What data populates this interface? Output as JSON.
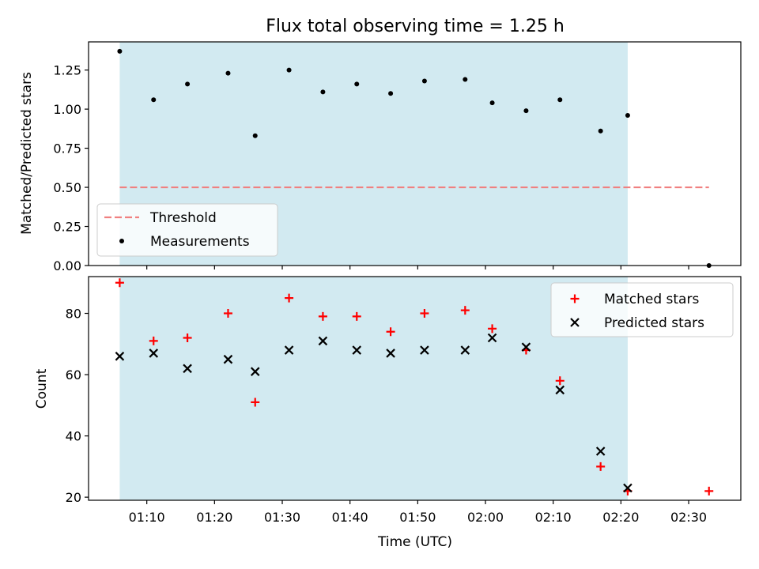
{
  "chart_data": {
    "title": "Flux total observing time = 1.25 h",
    "xlabel": "Time (UTC)",
    "x_tick_labels": [
      "01:10",
      "01:20",
      "01:30",
      "01:40",
      "01:50",
      "02:00",
      "02:10",
      "02:20",
      "02:30"
    ],
    "x_tick_minutes": [
      70,
      80,
      90,
      100,
      110,
      120,
      130,
      140,
      150
    ],
    "xlim_minutes": [
      61.4,
      157.7
    ],
    "shaded_span_minutes": [
      66,
      141
    ],
    "shade_color": "#add8e6",
    "panels": [
      {
        "type": "scatter",
        "ylabel": "Matched/Predicted stars",
        "ylim": [
          0,
          1.43
        ],
        "yticks": [
          0.0,
          0.25,
          0.5,
          0.75,
          1.0,
          1.25
        ],
        "ytick_labels": [
          "0.00",
          "0.25",
          "0.50",
          "0.75",
          "1.00",
          "1.25"
        ],
        "threshold": {
          "name": "Threshold",
          "value": 0.5,
          "x_range_minutes": [
            66,
            153
          ],
          "color": "#f08080"
        },
        "series": [
          {
            "name": "Measurements",
            "color": "#000000",
            "marker": "dot",
            "x_minutes": [
              66,
              71,
              76,
              82,
              86,
              91,
              96,
              101,
              106,
              111,
              117,
              121,
              126,
              131,
              137,
              141,
              153
            ],
            "values": [
              1.37,
              1.06,
              1.16,
              1.23,
              0.83,
              1.25,
              1.11,
              1.16,
              1.1,
              1.18,
              1.19,
              1.04,
              0.99,
              1.06,
              0.86,
              0.96,
              0.0
            ]
          }
        ],
        "legend": {
          "position": "lower-left",
          "entries": [
            "Threshold",
            "Measurements"
          ]
        }
      },
      {
        "type": "scatter",
        "ylabel": "Count",
        "ylim": [
          19,
          92
        ],
        "yticks": [
          20,
          40,
          60,
          80
        ],
        "ytick_labels": [
          "20",
          "40",
          "60",
          "80"
        ],
        "series": [
          {
            "name": "Matched stars",
            "color": "#ff0000",
            "marker": "plus",
            "x_minutes": [
              66,
              71,
              76,
              82,
              86,
              91,
              96,
              101,
              106,
              111,
              117,
              121,
              126,
              131,
              137,
              141,
              153
            ],
            "values": [
              90,
              71,
              72,
              80,
              51,
              85,
              79,
              79,
              74,
              80,
              81,
              75,
              68,
              58,
              30,
              22,
              22
            ]
          },
          {
            "name": "Predicted stars",
            "color": "#000000",
            "marker": "x",
            "x_minutes": [
              66,
              71,
              76,
              82,
              86,
              91,
              96,
              101,
              106,
              111,
              117,
              121,
              126,
              131,
              137,
              141
            ],
            "values": [
              66,
              67,
              62,
              65,
              61,
              68,
              71,
              68,
              67,
              68,
              68,
              72,
              69,
              55,
              35,
              23
            ]
          }
        ],
        "legend": {
          "position": "upper-right",
          "entries": [
            "Matched stars",
            "Predicted stars"
          ]
        }
      }
    ]
  }
}
